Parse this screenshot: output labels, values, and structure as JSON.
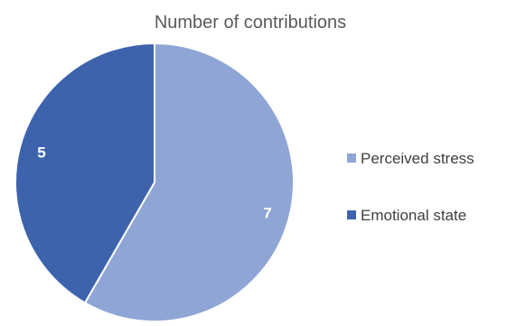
{
  "chart_data": {
    "type": "pie",
    "title": "Number of contributions",
    "categories": [
      "Perceived stress",
      "Emotional state"
    ],
    "values": [
      7,
      5
    ],
    "colors": [
      "#8FA5D5",
      "#3E63AD"
    ],
    "start_angle": "12 o'clock",
    "direction": "clockwise",
    "legend_position": "right"
  }
}
